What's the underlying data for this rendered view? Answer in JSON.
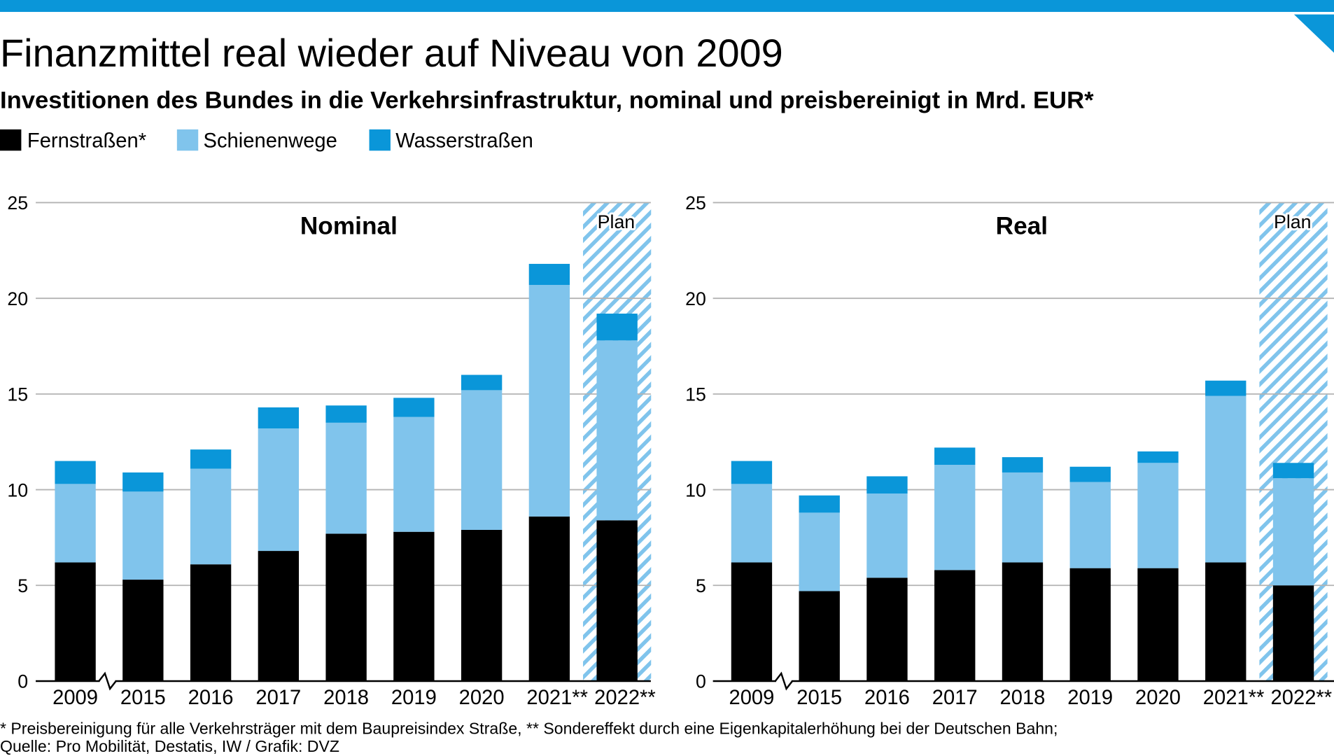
{
  "header": {
    "title": "Finanzmittel real wieder auf Niveau von 2009",
    "subtitle": "Investitionen des Bundes in die Verkehrsinfrastruktur, nominal und preisbereinigt in Mrd. EUR*"
  },
  "colors": {
    "accent": "#0a96d9",
    "plan_hatch": "#80c4ec",
    "grid": "#b3b3b3",
    "axis": "#000000"
  },
  "legend": [
    {
      "label": "Fernstraßen*",
      "color": "#000000"
    },
    {
      "label": "Schienenwege",
      "color": "#80c4ec"
    },
    {
      "label": "Wasserstraßen",
      "color": "#0a96d9"
    }
  ],
  "chart_data": [
    {
      "type": "bar",
      "stacked": true,
      "title": "Nominal",
      "plan_label": "Plan",
      "plan_categories": [
        "2022**"
      ],
      "x_axis_break_after": "2009",
      "categories": [
        "2009",
        "2015",
        "2016",
        "2017",
        "2018",
        "2019",
        "2020",
        "2021**",
        "2022**"
      ],
      "ylim": [
        0,
        25
      ],
      "yticks": [
        0,
        5,
        10,
        15,
        20,
        25
      ],
      "grid": true,
      "legend_position": "top-left",
      "series": [
        {
          "name": "Fernstraßen*",
          "color": "#000000",
          "values": [
            6.2,
            5.3,
            6.1,
            6.8,
            7.7,
            7.8,
            7.9,
            8.6,
            8.4
          ]
        },
        {
          "name": "Schienenwege",
          "color": "#80c4ec",
          "values": [
            4.1,
            4.6,
            5.0,
            6.4,
            5.8,
            6.0,
            7.3,
            12.1,
            9.4
          ]
        },
        {
          "name": "Wasserstraßen",
          "color": "#0a96d9",
          "values": [
            1.2,
            1.0,
            1.0,
            1.1,
            0.9,
            1.0,
            0.8,
            1.1,
            1.4
          ]
        }
      ]
    },
    {
      "type": "bar",
      "stacked": true,
      "title": "Real",
      "plan_label": "Plan",
      "plan_categories": [
        "2022**"
      ],
      "x_axis_break_after": "2009",
      "categories": [
        "2009",
        "2015",
        "2016",
        "2017",
        "2018",
        "2019",
        "2020",
        "2021**",
        "2022**"
      ],
      "ylim": [
        0,
        25
      ],
      "yticks": [
        0,
        5,
        10,
        15,
        20,
        25
      ],
      "grid": true,
      "legend_position": "top-left",
      "series": [
        {
          "name": "Fernstraßen*",
          "color": "#000000",
          "values": [
            6.2,
            4.7,
            5.4,
            5.8,
            6.2,
            5.9,
            5.9,
            6.2,
            5.0
          ]
        },
        {
          "name": "Schienenwege",
          "color": "#80c4ec",
          "values": [
            4.1,
            4.1,
            4.4,
            5.5,
            4.7,
            4.5,
            5.5,
            8.7,
            5.6
          ]
        },
        {
          "name": "Wasserstraßen",
          "color": "#0a96d9",
          "values": [
            1.2,
            0.9,
            0.9,
            0.9,
            0.8,
            0.8,
            0.6,
            0.8,
            0.8
          ]
        }
      ]
    }
  ],
  "footnotes": {
    "note": "* Preisbereinigung für alle Verkehrsträger mit dem Baupreisindex Straße, ** Sondereffekt durch eine Eigenkapitalerhöhung bei der Deutschen Bahn;",
    "source": "Quelle: Pro Mobilität, Destatis, IW / Grafik: DVZ"
  }
}
